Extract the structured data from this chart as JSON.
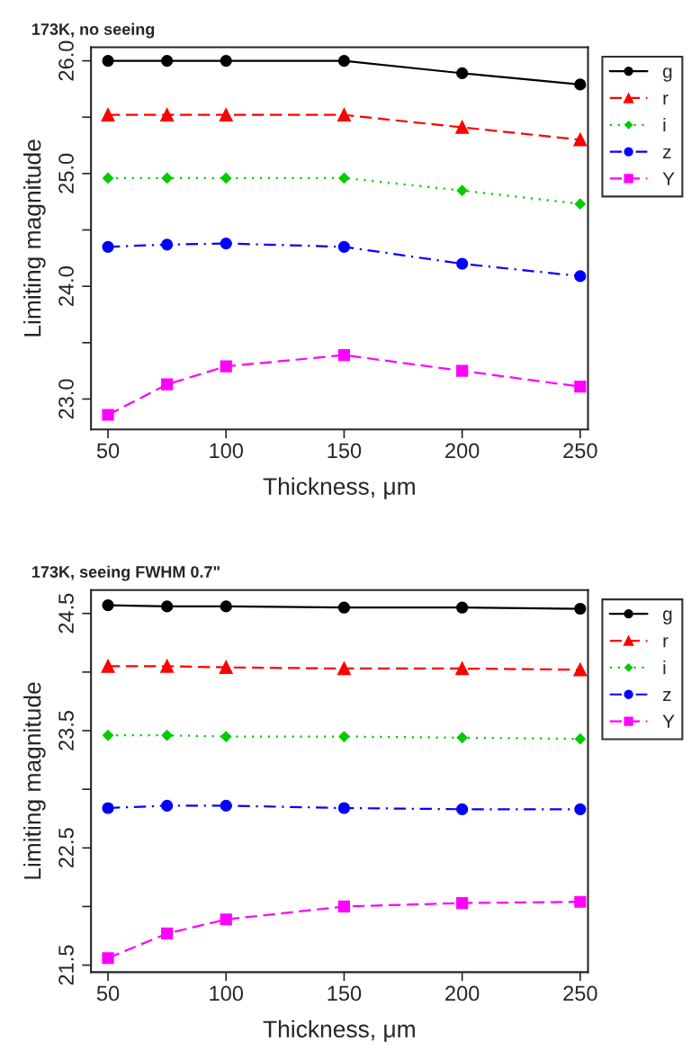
{
  "chart_data": [
    {
      "type": "line",
      "title": "173K, no seeing",
      "xlabel": "Thickness, μm",
      "ylabel": "Limiting magnitude",
      "x": [
        50,
        75,
        100,
        150,
        200,
        250
      ],
      "xlim": [
        42.8,
        253.3
      ],
      "xticks": [
        50,
        100,
        150,
        200,
        250
      ],
      "ylim": [
        22.73,
        26.12
      ],
      "yticks": [
        {
          "value": 23,
          "label": "23.0"
        },
        {
          "value": 23.5,
          "label": null
        },
        {
          "value": 24,
          "label": "24.0"
        },
        {
          "value": 24.5,
          "label": null
        },
        {
          "value": 25,
          "label": "25.0"
        },
        {
          "value": 25.5,
          "label": null
        },
        {
          "value": 26,
          "label": "26.0"
        }
      ],
      "grid": false,
      "legend": "top right",
      "series": [
        {
          "name": "g",
          "color": "#000000",
          "marker": "circle",
          "line_style": "solid",
          "values": [
            26.0,
            26.0,
            26.0,
            26.0,
            25.89,
            25.79
          ]
        },
        {
          "name": "r",
          "color": "#ff0000",
          "marker": "triangle",
          "line_style": "dashed",
          "values": [
            25.52,
            25.52,
            25.52,
            25.52,
            25.41,
            25.3
          ]
        },
        {
          "name": "i",
          "color": "#00cc00",
          "marker": "diamond",
          "line_style": "dotted",
          "values": [
            24.96,
            24.96,
            24.96,
            24.96,
            24.85,
            24.73
          ]
        },
        {
          "name": "z",
          "color": "#0000ff",
          "marker": "circle",
          "line_style": "dashdot",
          "values": [
            24.35,
            24.37,
            24.38,
            24.35,
            24.2,
            24.09
          ]
        },
        {
          "name": "Y",
          "color": "#ff00ff",
          "marker": "square",
          "line_style": "dashed",
          "values": [
            22.86,
            23.13,
            23.29,
            23.39,
            23.25,
            23.11
          ]
        }
      ]
    },
    {
      "type": "line",
      "title": "173K, seeing FWHM 0.7\"",
      "xlabel": "Thickness, μm",
      "ylabel": "Limiting magnitude",
      "x": [
        50,
        75,
        100,
        150,
        200,
        250
      ],
      "xlim": [
        42.8,
        253.3
      ],
      "xticks": [
        50,
        100,
        150,
        200,
        250
      ],
      "ylim": [
        21.44,
        24.7
      ],
      "yticks": [
        21.5,
        {
          "value": 22.0,
          "label": null
        },
        22.5,
        {
          "value": 23.0,
          "label": null
        },
        23.5,
        {
          "value": 24.0,
          "label": null
        },
        24.5
      ],
      "grid": false,
      "legend": "top right",
      "series": [
        {
          "name": "g",
          "color": "#000000",
          "marker": "circle",
          "line_style": "solid",
          "values": [
            24.57,
            24.56,
            24.56,
            24.55,
            24.55,
            24.54
          ]
        },
        {
          "name": "r",
          "color": "#ff0000",
          "marker": "triangle",
          "line_style": "dashed",
          "values": [
            24.05,
            24.05,
            24.04,
            24.03,
            24.03,
            24.02
          ]
        },
        {
          "name": "i",
          "color": "#00cc00",
          "marker": "diamond",
          "line_style": "dotted",
          "values": [
            23.46,
            23.46,
            23.45,
            23.45,
            23.44,
            23.43
          ]
        },
        {
          "name": "z",
          "color": "#0000ff",
          "marker": "circle",
          "line_style": "dashdot",
          "values": [
            22.84,
            22.86,
            22.86,
            22.84,
            22.83,
            22.83
          ]
        },
        {
          "name": "Y",
          "color": "#ff00ff",
          "marker": "square",
          "line_style": "dashed",
          "values": [
            21.56,
            21.77,
            21.89,
            22.0,
            22.03,
            22.04
          ]
        }
      ]
    }
  ]
}
